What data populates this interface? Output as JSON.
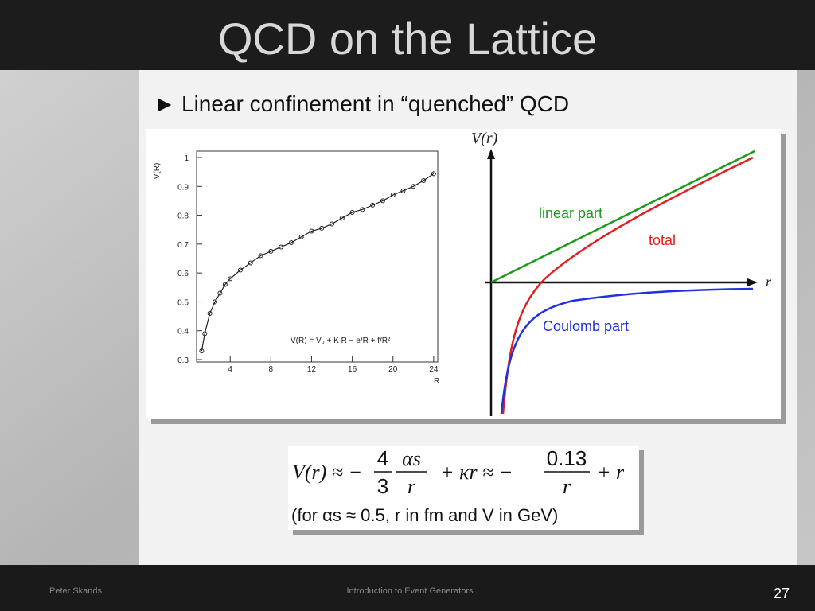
{
  "header": {
    "title": "QCD on the Lattice"
  },
  "bullet": {
    "marker": "►",
    "text": "Linear confinement in “quenched” QCD"
  },
  "lattice_plot": {
    "y_label": "V(R)",
    "x_label": "R",
    "legend": "V(R) = V₀ + K R − e/R + f/R²",
    "xlim": [
      0.7,
      24.4
    ],
    "ylim": [
      0.3,
      1
    ],
    "xticks": [
      4,
      8,
      12,
      16,
      20,
      24
    ],
    "yticks": [
      0.3,
      0.4,
      0.5,
      0.6,
      0.7,
      0.8,
      0.9,
      1
    ],
    "points": {
      "x": [
        1.2,
        1.5,
        2,
        2.5,
        3,
        3.5,
        4,
        5,
        6,
        7,
        8,
        9,
        10,
        11,
        12,
        13,
        14,
        15,
        16,
        17,
        18,
        19,
        20,
        21,
        22,
        23,
        24
      ],
      "y": [
        0.33,
        0.39,
        0.46,
        0.5,
        0.53,
        0.56,
        0.58,
        0.61,
        0.635,
        0.66,
        0.675,
        0.69,
        0.705,
        0.725,
        0.745,
        0.755,
        0.77,
        0.79,
        0.81,
        0.82,
        0.835,
        0.85,
        0.87,
        0.885,
        0.9,
        0.92,
        0.944
      ]
    }
  },
  "potential_sketch": {
    "y_label": "V(r)",
    "x_label": "r",
    "linear": "linear part",
    "total": "total",
    "coulomb": "Coulomb part"
  },
  "formula": {
    "lhs": "V(r) ≈ −",
    "frac1_num": "4",
    "frac1_den": "3",
    "frac2_num": "αs",
    "frac2_den": "r",
    "mid": "+ κr ≈ −",
    "frac3_num": "0.13",
    "frac3_den": "r",
    "tail": "+ r",
    "note": "(for αs ≈ 0.5, r in fm and V in GeV)"
  },
  "footer": {
    "author": "Peter Skands",
    "course": "Introduction to Event Generators",
    "page": "27"
  }
}
